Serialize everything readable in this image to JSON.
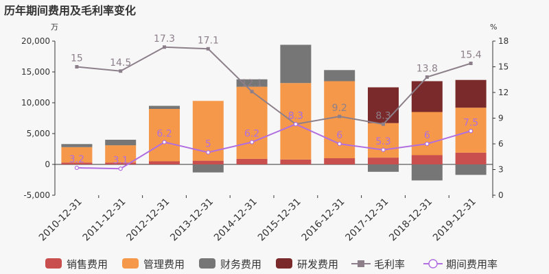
{
  "chart_data": {
    "type": "bar",
    "title": "历年期间费用及毛利率变化",
    "left_unit": "万",
    "right_unit": "%",
    "categories": [
      "2010-12-31",
      "2011-12-31",
      "2012-12-31",
      "2013-12-31",
      "2014-12-31",
      "2015-12-31",
      "2016-12-31",
      "2017-12-31",
      "2018-12-31",
      "2019-12-31"
    ],
    "left_axis": {
      "min": -5000,
      "max": 20000,
      "ticks": [
        "-5,000",
        "0",
        "5,000",
        "10,000",
        "15,000",
        "20,000"
      ],
      "tick_values": [
        -5000,
        0,
        5000,
        10000,
        15000,
        20000
      ]
    },
    "right_axis": {
      "min": 0,
      "max": 18,
      "ticks": [
        "0",
        "3",
        "6",
        "9",
        "12",
        "15",
        "18"
      ],
      "tick_values": [
        0,
        3,
        6,
        9,
        12,
        15,
        18
      ]
    },
    "stack_order": [
      "销售费用",
      "管理费用",
      "财务费用",
      "研发费用"
    ],
    "bar_series": [
      {
        "name": "销售费用",
        "color": "#c94f4f",
        "values": [
          300,
          300,
          500,
          600,
          900,
          800,
          1000,
          1100,
          1500,
          1900
        ]
      },
      {
        "name": "管理费用",
        "color": "#f5984a",
        "values": [
          2500,
          2800,
          8500,
          9700,
          11700,
          12400,
          12500,
          5600,
          7000,
          7300
        ]
      },
      {
        "name": "财务费用",
        "color": "#767676",
        "values": [
          500,
          900,
          500,
          -1300,
          1200,
          6200,
          1800,
          -1200,
          -2600,
          -1700
        ]
      },
      {
        "name": "研发费用",
        "color": "#7a2a2a",
        "values": [
          0,
          0,
          0,
          0,
          0,
          0,
          0,
          5800,
          5000,
          4500
        ]
      }
    ],
    "line_series": [
      {
        "name": "毛利率",
        "color": "#8c7f8a",
        "marker": "square",
        "values": [
          15,
          14.5,
          17.3,
          17.1,
          12.1,
          8.3,
          9.2,
          8.3,
          13.8,
          15.4
        ],
        "labels": [
          "15",
          "14.5",
          "17.3",
          "17.1",
          "12.1",
          "8.3",
          "9.2",
          "8.3",
          "13.8",
          "15.4"
        ]
      },
      {
        "name": "期间费用率",
        "color": "#b06ee0",
        "marker": "circle",
        "values": [
          3.2,
          3.1,
          6.2,
          5,
          6.2,
          8.3,
          6,
          5.3,
          6,
          7.5
        ],
        "labels": [
          "3.2",
          "3.1",
          "6.2",
          "5",
          "6.2",
          "8.3",
          "6",
          "5.3",
          "6",
          "7.5"
        ]
      }
    ],
    "legend": {
      "position": "bottom",
      "items": [
        "销售费用",
        "管理费用",
        "财务费用",
        "研发费用",
        "毛利率",
        "期间费用率"
      ]
    },
    "grid": false
  }
}
